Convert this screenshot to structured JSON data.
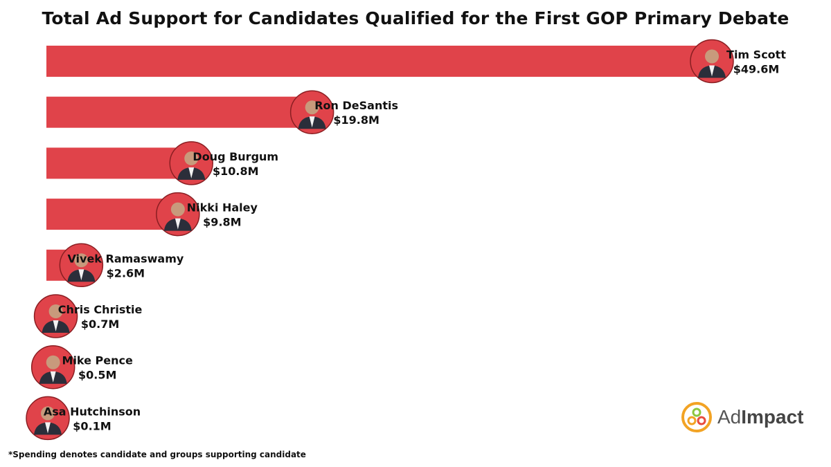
{
  "chart_data": {
    "type": "bar",
    "orientation": "horizontal",
    "title": "Total Ad Support for Candidates Qualified for the First GOP Primary Debate",
    "categories": [
      "Tim Scott",
      "Ron DeSantis",
      "Doug Burgum",
      "Nikki Haley",
      "Vivek Ramaswamy",
      "Chris Christie",
      "Mike Pence",
      "Asa Hutchinson"
    ],
    "values": [
      49.6,
      19.8,
      10.8,
      9.8,
      2.6,
      0.7,
      0.5,
      0.1
    ],
    "value_labels": [
      "$49.6M",
      "$19.8M",
      "$10.8M",
      "$9.8M",
      "$2.6M",
      "$0.7M",
      "$0.5M",
      "$0.1M"
    ],
    "unit": "$M",
    "xlabel": "",
    "ylabel": "",
    "grid": false,
    "bar_color": "#e0434a"
  },
  "footnote": "*Spending denotes candidate and groups supporting candidate",
  "logo": {
    "prefix": "Ad",
    "bold": "Impact"
  }
}
